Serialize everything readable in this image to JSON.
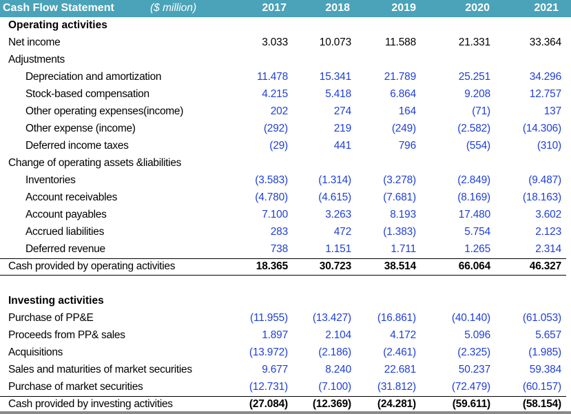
{
  "header": {
    "title": "Cash Flow Statement",
    "unit": "($ million)",
    "years": [
      "2017",
      "2018",
      "2019",
      "2020",
      "2021"
    ]
  },
  "rows": [
    {
      "label": "Operating activities",
      "style": "section",
      "indent": 0,
      "values": []
    },
    {
      "label": "Net income",
      "style": "black",
      "indent": 0,
      "values": [
        "3.033",
        "10.073",
        "11.588",
        "21.331",
        "33.364"
      ]
    },
    {
      "label": "Adjustments",
      "style": "label",
      "indent": 0,
      "values": []
    },
    {
      "label": "Depreciation and amortization",
      "style": "blue",
      "indent": 1,
      "values": [
        "11.478",
        "15.341",
        "21.789",
        "25.251",
        "34.296"
      ]
    },
    {
      "label": "Stock-based compensation",
      "style": "blue",
      "indent": 1,
      "values": [
        "4.215",
        "5.418",
        "6.864",
        "9.208",
        "12.757"
      ]
    },
    {
      "label": "Other operating expenses(income)",
      "style": "blue",
      "indent": 1,
      "values": [
        "202",
        "274",
        "164",
        "(71)",
        "137"
      ]
    },
    {
      "label": "Other expense (income)",
      "style": "blue",
      "indent": 1,
      "values": [
        "(292)",
        "219",
        "(249)",
        "(2.582)",
        "(14.306)"
      ]
    },
    {
      "label": "Deferred income taxes",
      "style": "blue",
      "indent": 1,
      "values": [
        "(29)",
        "441",
        "796",
        "(554)",
        "(310)"
      ]
    },
    {
      "label": "Change of operating assets &liabilities",
      "style": "label",
      "indent": 0,
      "values": []
    },
    {
      "label": "Inventories",
      "style": "blue",
      "indent": 1,
      "values": [
        "(3.583)",
        "(1.314)",
        "(3.278)",
        "(2.849)",
        "(9.487)"
      ]
    },
    {
      "label": "Account receivables",
      "style": "blue",
      "indent": 1,
      "values": [
        "(4.780)",
        "(4.615)",
        "(7.681)",
        "(8.169)",
        "(18.163)"
      ]
    },
    {
      "label": "Account payables",
      "style": "blue",
      "indent": 1,
      "values": [
        "7.100",
        "3.263",
        "8.193",
        "17.480",
        "3.602"
      ]
    },
    {
      "label": "Accrued liabilities",
      "style": "blue",
      "indent": 1,
      "values": [
        "283",
        "472",
        "(1.383)",
        "5.754",
        "2.123"
      ]
    },
    {
      "label": "Deferred revenue",
      "style": "blue",
      "indent": 1,
      "values": [
        "738",
        "1.151",
        "1.711",
        "1.265",
        "2.314"
      ]
    },
    {
      "label": "Cash provided by operating activities",
      "style": "total",
      "indent": 0,
      "values": [
        "18.365",
        "30.723",
        "38.514",
        "66.064",
        "46.327"
      ]
    },
    {
      "label": "",
      "style": "blank",
      "indent": 0,
      "values": []
    },
    {
      "label": "Investing activities",
      "style": "section",
      "indent": 0,
      "values": []
    },
    {
      "label": "Purchase of PP&E",
      "style": "blue",
      "indent": 0,
      "values": [
        "(11.955)",
        "(13.427)",
        "(16.861)",
        "(40.140)",
        "(61.053)"
      ]
    },
    {
      "label": "Proceeds from PP& sales",
      "style": "blue",
      "indent": 0,
      "values": [
        "1.897",
        "2.104",
        "4.172",
        "5.096",
        "5.657"
      ]
    },
    {
      "label": "Acquisitions",
      "style": "blue",
      "indent": 0,
      "values": [
        "(13.972)",
        "(2.186)",
        "(2.461)",
        "(2.325)",
        "(1.985)"
      ]
    },
    {
      "label": "Sales and maturities of market securities",
      "style": "blue",
      "indent": 0,
      "values": [
        "9.677",
        "8.240",
        "22.681",
        "50.237",
        "59.384"
      ]
    },
    {
      "label": "Purchase of market securities",
      "style": "blue",
      "indent": 0,
      "values": [
        "(12.731)",
        "(7.100)",
        "(31.812)",
        "(72.479)",
        "(60.157)"
      ]
    },
    {
      "label": "Cash provided by investing activities",
      "style": "total",
      "indent": 0,
      "values": [
        "(27.084)",
        "(12.369)",
        "(24.281)",
        "(59.611)",
        "(58.154)"
      ]
    }
  ]
}
